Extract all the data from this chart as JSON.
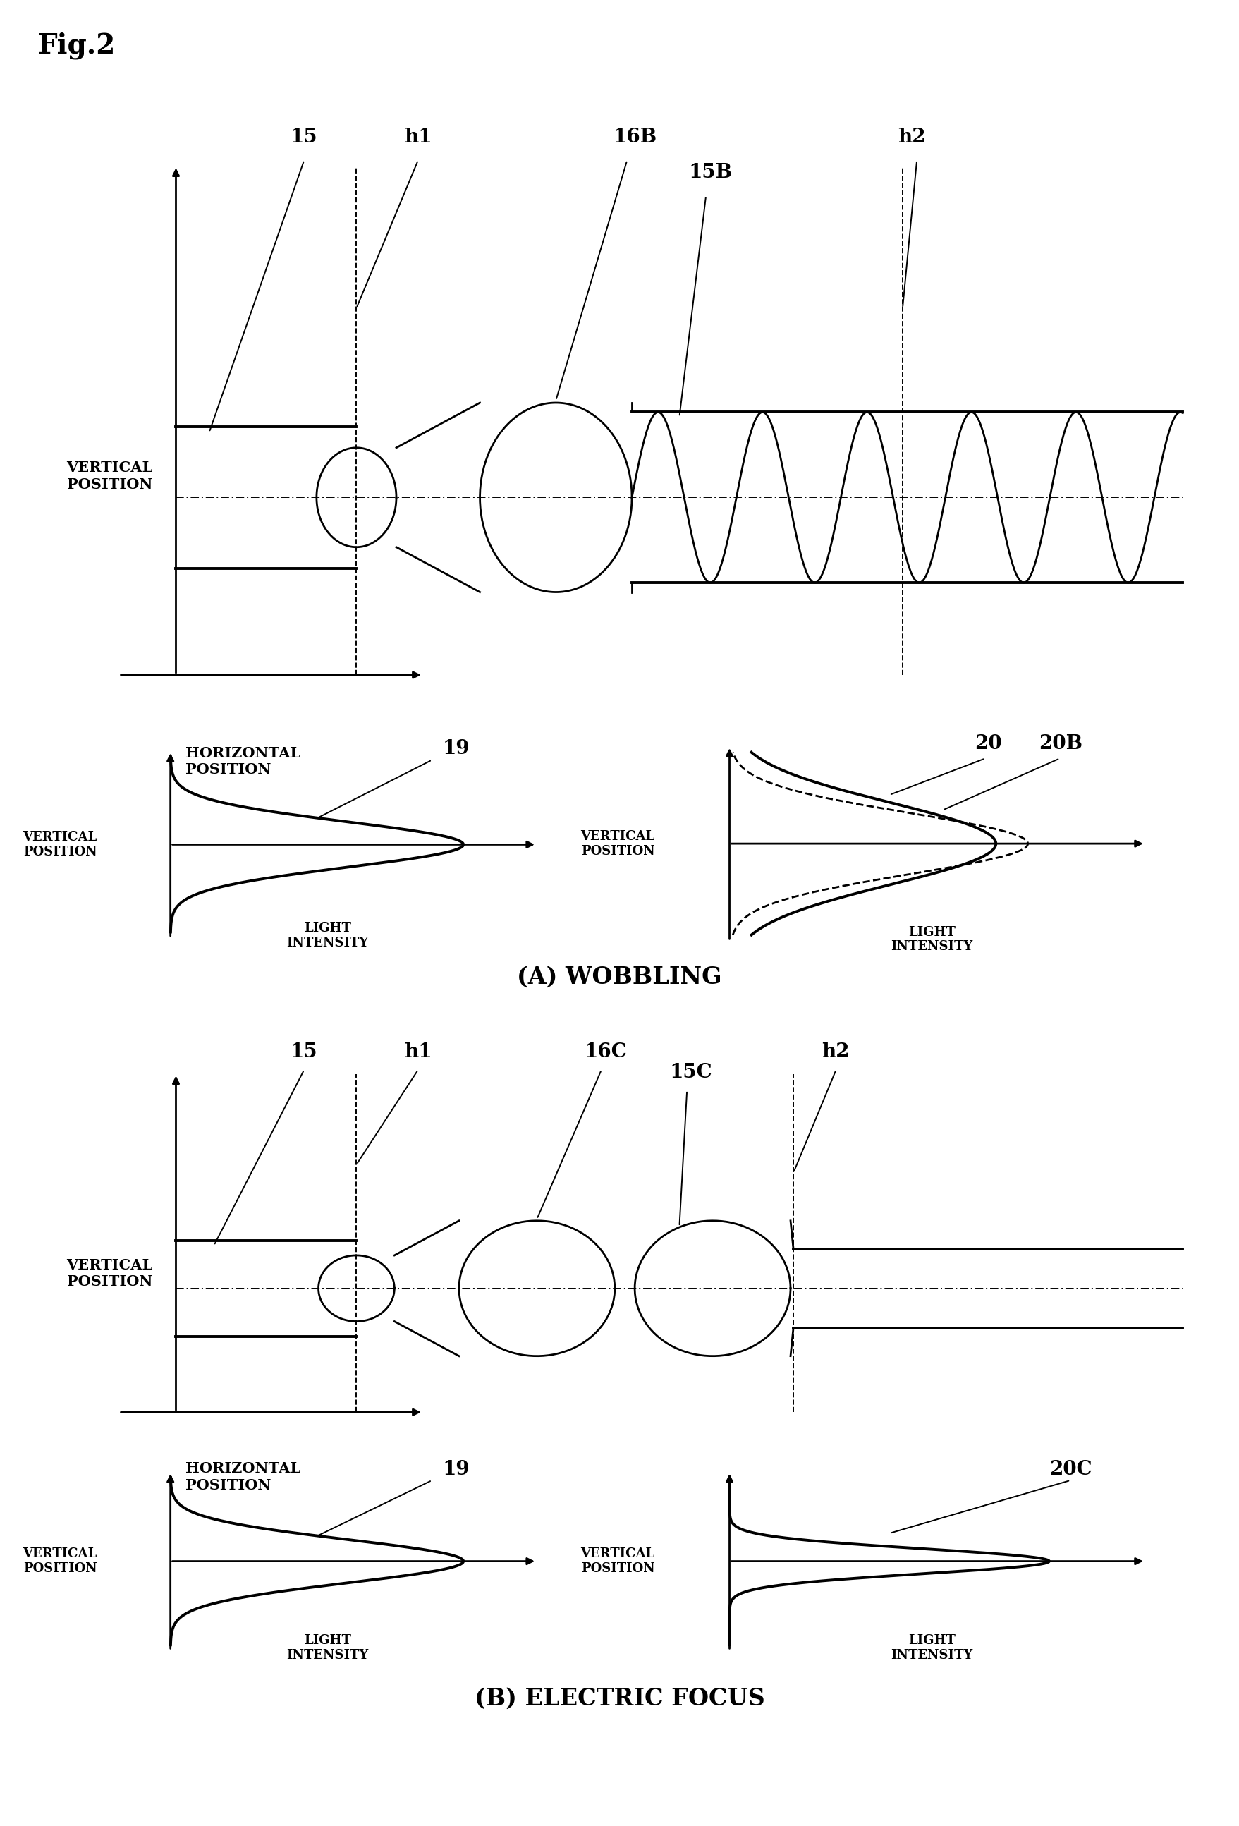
{
  "fig_label": "Fig.2",
  "section_A_label": "(A) WOBBLING",
  "section_B_label": "(B) ELECTRIC FOCUS",
  "bg_color": "#ffffff",
  "line_color": "#000000",
  "lw": 2.0,
  "lw_thick": 2.8,
  "lw_thin": 1.4,
  "fs_fig": 28,
  "fs_label": 20,
  "fs_annot": 18,
  "fs_axis": 15,
  "fs_section": 24
}
